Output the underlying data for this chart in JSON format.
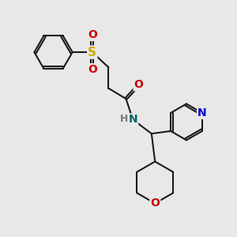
{
  "background_color": "#e8e8e8",
  "atom_colors": {
    "C": "#1a1a1a",
    "N_pyr": "#0000cc",
    "N_amide": "#006666",
    "O": "#cc0000",
    "S": "#ccaa00",
    "H": "#777777"
  },
  "bond_color": "#1a1a1a",
  "bond_width": 1.5,
  "font_size_atoms": 10,
  "figsize": [
    3.0,
    3.0
  ],
  "dpi": 100
}
